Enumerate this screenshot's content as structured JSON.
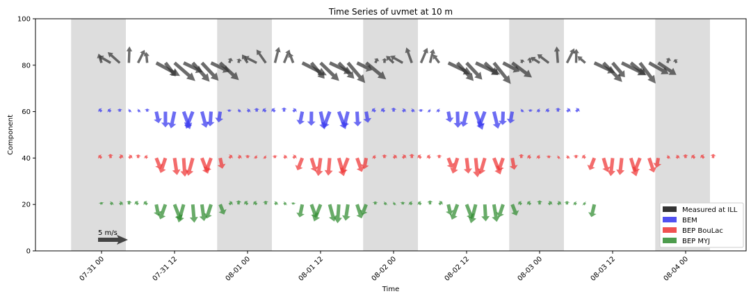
{
  "chart_data": {
    "type": "quiver",
    "title": "Time Series of uvmet at 10 m",
    "xlabel": "Time",
    "ylabel": "Component",
    "ylim": [
      0,
      100
    ],
    "xlim_hours": [
      -9,
      222
    ],
    "yticks": [
      0,
      20,
      40,
      60,
      80,
      100
    ],
    "xticks": [
      {
        "hour": 0,
        "label": "07-31 00"
      },
      {
        "hour": 12,
        "label": "07-31 12"
      },
      {
        "hour": 24,
        "label": "08-01 00"
      },
      {
        "hour": 36,
        "label": "08-01 12"
      },
      {
        "hour": 48,
        "label": "08-02 00"
      },
      {
        "hour": 60,
        "label": "08-02 12"
      },
      {
        "hour": 72,
        "label": "08-03 00"
      },
      {
        "hour": 84,
        "label": "08-03 12"
      },
      {
        "hour": 96,
        "label": "08-04 00"
      }
    ],
    "night_bands_hours": [
      [
        -5,
        4
      ],
      [
        19,
        28
      ],
      [
        43,
        52
      ],
      [
        67,
        76
      ],
      [
        91,
        100
      ]
    ],
    "reference_arrow": {
      "label": "5 m/s",
      "hour": 0,
      "y": 5,
      "speed": 5
    },
    "legend_position": "lower-right",
    "series": [
      {
        "name": "Measured at ILL",
        "y": 81,
        "color": "#333333",
        "start": 0,
        "end": 95,
        "dir": "nw",
        "wiggle": 1
      },
      {
        "name": "BEM",
        "y": 60,
        "color": "#3333ee",
        "start": 0,
        "end": 79,
        "dir": "s",
        "wiggle": 0
      },
      {
        "name": "BEP BouLac",
        "y": 40,
        "color": "#ee3333",
        "start": 0,
        "end": 101,
        "dir": "s",
        "wiggle": 0
      },
      {
        "name": "BEP MYJ",
        "y": 20,
        "color": "#2e8b2e",
        "start": 0,
        "end": 82,
        "dir": "s",
        "wiggle": 0
      }
    ]
  }
}
